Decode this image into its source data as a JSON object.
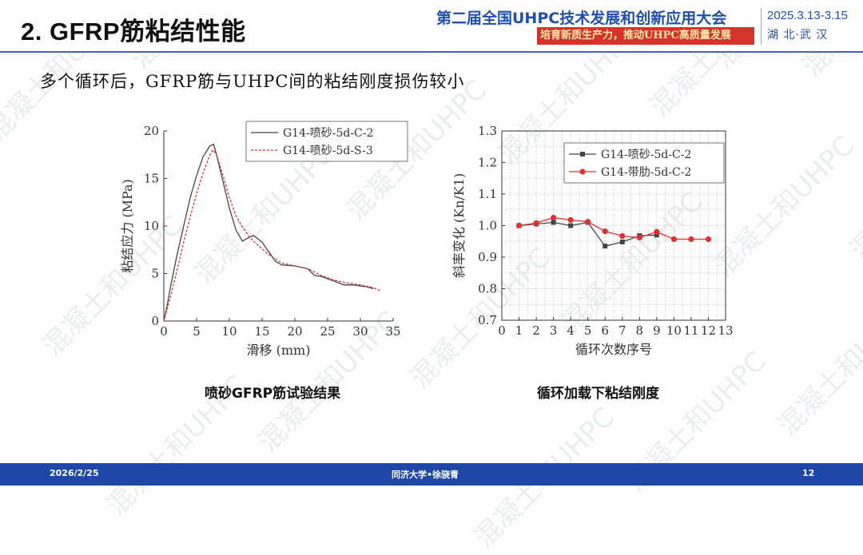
{
  "header": {
    "title": "2. GFRP筋粘结性能",
    "conference": "第二届全国UHPC技术发展和创新应用大会",
    "slogan": "培育新质生产力，推动UHPC高质量发展",
    "date": "2025.3.13-3.15",
    "city": "湖 北·武 汉"
  },
  "subtitle": "多个循环后，GFRP筋与UHPC间的粘结刚度损伤较小",
  "watermark": "混凝土和UHPC",
  "colors": {
    "brand_blue": "#1f47a8",
    "slogan_red": "#d6332b",
    "series_red": "#e03030"
  },
  "left_caption": "喷砂GFRP筋试验结果",
  "right_caption": "循环加载下粘结刚度",
  "footer": {
    "date": "2026/2/25",
    "author": "同济大学•徐骁青",
    "page": "12"
  },
  "chart_data": [
    {
      "type": "line",
      "xlabel": "滑移 (mm)",
      "ylabel": "粘结应力 (MPa)",
      "xlim": [
        0,
        35
      ],
      "ylim": [
        0,
        20
      ],
      "xticks": [
        0,
        5,
        10,
        15,
        20,
        25,
        30,
        35
      ],
      "yticks": [
        0,
        5,
        10,
        15,
        20
      ],
      "grid": false,
      "legend": "top-right",
      "series": [
        {
          "name": "G14-喷砂-5d-C-2",
          "color": "#444444",
          "style": "solid",
          "x": [
            0,
            0.5,
            1,
            2,
            3,
            4,
            5,
            6,
            7,
            7.6,
            8,
            9,
            10,
            11,
            12,
            13,
            13.7,
            15,
            16,
            17,
            18,
            20,
            22,
            23,
            24,
            26,
            27.5,
            29,
            31,
            32
          ],
          "y": [
            0,
            1.6,
            3.5,
            6.9,
            9.9,
            12.9,
            15.3,
            17.3,
            18.4,
            18.6,
            17.6,
            14.8,
            11.9,
            9.6,
            8.4,
            8.8,
            9.0,
            8.3,
            7.3,
            6.3,
            5.9,
            5.8,
            5.5,
            4.8,
            4.7,
            4.2,
            3.8,
            3.8,
            3.6,
            3.4
          ]
        },
        {
          "name": "G14-喷砂-5d-S-3",
          "color": "#e03030",
          "style": "dashed",
          "x": [
            0,
            1,
            2,
            3,
            4,
            5,
            6,
            7,
            7.5,
            8,
            9,
            10,
            11,
            12,
            13,
            14,
            15,
            16,
            18,
            20,
            22,
            24,
            26,
            28,
            30,
            32,
            33
          ],
          "y": [
            0,
            2.5,
            5.3,
            8.2,
            10.9,
            13.4,
            15.6,
            17.4,
            18.0,
            17.6,
            15.4,
            13.0,
            11.1,
            9.9,
            8.9,
            8.2,
            7.6,
            7.0,
            6.1,
            5.8,
            5.5,
            4.8,
            4.3,
            4.0,
            3.8,
            3.5,
            3.2
          ]
        }
      ]
    },
    {
      "type": "line",
      "xlabel": "循环次数序号",
      "ylabel": "斜率变化 (Kn/K1)",
      "xlim": [
        0,
        13
      ],
      "ylim": [
        0.7,
        1.3
      ],
      "xticks": [
        0,
        1,
        2,
        3,
        4,
        5,
        6,
        7,
        8,
        9,
        10,
        11,
        12,
        13
      ],
      "yticks": [
        0.7,
        0.8,
        0.9,
        1.0,
        1.1,
        1.2,
        1.3
      ],
      "grid": true,
      "legend": "top-right",
      "series": [
        {
          "name": "G14-喷砂-5d-C-2",
          "color": "#444444",
          "marker": "square",
          "x": [
            1,
            2,
            3,
            4,
            5,
            6,
            7,
            8,
            9
          ],
          "y": [
            1.0,
            1.005,
            1.01,
            1.0,
            1.01,
            0.935,
            0.948,
            0.968,
            0.97
          ]
        },
        {
          "name": "G14-带肋-5d-C-2",
          "color": "#e03030",
          "marker": "circle",
          "x": [
            1,
            2,
            3,
            4,
            5,
            6,
            7,
            8,
            9,
            10,
            11,
            12
          ],
          "y": [
            1.0,
            1.008,
            1.025,
            1.018,
            1.012,
            0.982,
            0.967,
            0.962,
            0.98,
            0.957,
            0.957,
            0.957
          ]
        }
      ]
    }
  ]
}
